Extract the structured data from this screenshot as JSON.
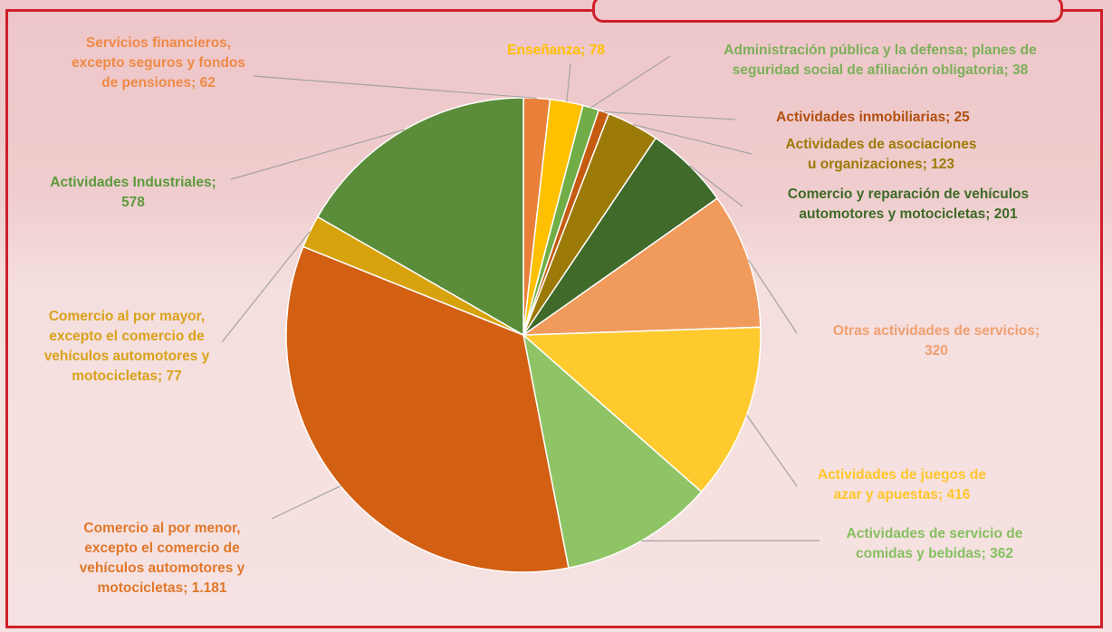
{
  "chart_data": {
    "type": "pie",
    "slices": [
      {
        "label": "Servicios financieros, excepto seguros y fondos de pensiones",
        "value": "62",
        "value_num": 62,
        "color": "#e8803a",
        "label_color": "#ee8a47",
        "lines": [
          "Servicios financieros,",
          "excepto seguros y fondos",
          "de pensiones; 62"
        ]
      },
      {
        "label": "Enseñanza",
        "value": "78",
        "value_num": 78,
        "color": "#ffc000",
        "label_color": "#ffc000",
        "lines": [
          "Enseñanza; 78"
        ]
      },
      {
        "label": "Administración pública y la defensa; planes de seguridad social de afiliación obligatoria",
        "value": "38",
        "value_num": 38,
        "color": "#70ad47",
        "label_color": "#7cb05a",
        "lines": [
          "Administración pública y la defensa; planes de",
          "seguridad social de afiliación obligatoria; 38"
        ]
      },
      {
        "label": "Actividades inmobiliarias",
        "value": "25",
        "value_num": 25,
        "color": "#c55a11",
        "label_color": "#b24f10",
        "lines": [
          "Actividades inmobiliarias; 25"
        ]
      },
      {
        "label": "Actividades de asociaciones u organizaciones",
        "value": "123",
        "value_num": 123,
        "color": "#9c7a07",
        "label_color": "#9c7a07",
        "lines": [
          "Actividades de asociaciones",
          "u organizaciones; 123"
        ]
      },
      {
        "label": "Comercio y reparación de vehículos automotores y motocicletas",
        "value": "201",
        "value_num": 201,
        "color": "#3f6a2a",
        "label_color": "#3d6a27",
        "lines": [
          "Comercio y reparación de vehículos",
          "automotores y motocicletas; 201"
        ]
      },
      {
        "label": "Otras actividades de servicios",
        "value": "320",
        "value_num": 320,
        "color": "#f09a5c",
        "label_color": "#f0a070",
        "lines": [
          "Otras actividades de servicios;",
          "320"
        ]
      },
      {
        "label": "Actividades de juegos de azar y apuestas",
        "value": "416",
        "value_num": 416,
        "color": "#ffca2e",
        "label_color": "#ffc62a",
        "lines": [
          "Actividades de juegos de",
          "azar y apuestas; 416"
        ]
      },
      {
        "label": "Actividades de servicio de comidas y bebidas",
        "value": "362",
        "value_num": 362,
        "color": "#8fc466",
        "label_color": "#86c061",
        "lines": [
          "Actividades de servicio de",
          "comidas y bebidas; 362"
        ]
      },
      {
        "label": "Comercio al por menor, excepto el comercio de vehículos automotores y motocicletas",
        "value": "1.181",
        "value_num": 1181,
        "color": "#d35f13",
        "label_color": "#e0782a",
        "lines": [
          "Comercio al por menor,",
          "excepto el comercio de",
          "vehículos automotores y",
          "motocicletas; 1.181"
        ]
      },
      {
        "label": "Comercio al por mayor, excepto el comercio de vehículos automotores y motocicletas",
        "value": "77",
        "value_num": 77,
        "color": "#d7a20c",
        "label_color": "#d9a21a",
        "lines": [
          "Comercio al por mayor,",
          "excepto el comercio de",
          "vehículos automotores y",
          "motocicletas; 77"
        ]
      },
      {
        "label": "Actividades Industriales",
        "value": "578",
        "value_num": 578,
        "color": "#5b8c3a",
        "label_color": "#5b9a3c",
        "lines": [
          "Actividades Industriales;",
          "578"
        ]
      }
    ]
  }
}
